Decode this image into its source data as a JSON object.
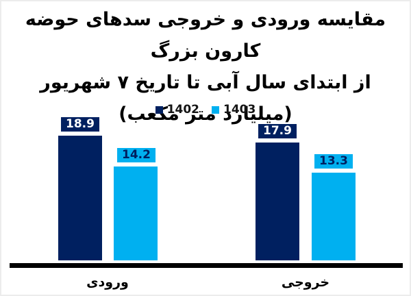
{
  "chart_data": {
    "type": "bar",
    "title_lines": [
      "مقایسه ورودی و خروجی سدهای حوضه کارون بزرگ",
      "از ابتدای سال آبی تا تاریخ ۷ شهریور",
      "(میلیارد متر مکعب)"
    ],
    "categories": [
      "ورودی",
      "خروجی"
    ],
    "series": [
      {
        "name": "1402",
        "color": "#002060",
        "values": [
          18.9,
          17.9
        ]
      },
      {
        "name": "1403",
        "color": "#00B0F0",
        "values": [
          14.2,
          13.3
        ]
      }
    ],
    "ylim": [
      0,
      19.5
    ],
    "grid": false,
    "y_axis_visible": false,
    "legend_position": "top-center",
    "value_labels": true,
    "text_direction": "rtl"
  },
  "colors": {
    "series_1402": "#002060",
    "series_1403": "#00B0F0",
    "axis_line": "#000000",
    "background": "#ffffff",
    "title_text": "#000000",
    "legend_text": "#141414",
    "label_text_on_dark": "#ffffff",
    "label_text_on_light": "#002060"
  }
}
